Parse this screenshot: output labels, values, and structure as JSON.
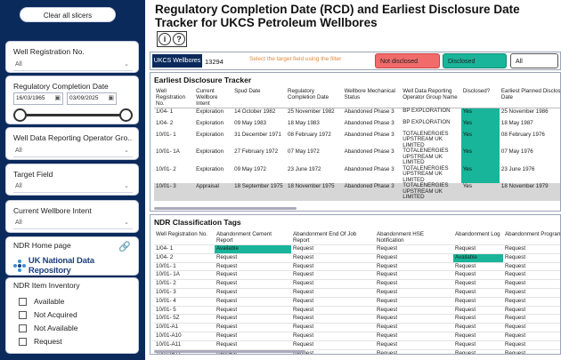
{
  "sidebar": {
    "clear_button": "Clear all slicers",
    "well_registration": {
      "title": "Well Registration No.",
      "value": "All"
    },
    "completion_date": {
      "title": "Regulatory Completion Date",
      "from": "16/03/1965",
      "to": "03/09/2025"
    },
    "operator_group": {
      "title": "Well Data Reporting Operator Gro...",
      "value": "All"
    },
    "target_field": {
      "title": "Target Field",
      "value": "All"
    },
    "wellbore_intent": {
      "title": "Current Wellbore Intent",
      "value": "All"
    },
    "ndr_home": {
      "title": "NDR Home page",
      "logo_text": "UK National Data Repository"
    },
    "ndr_inventory": {
      "title": "NDR Item Inventory",
      "items": [
        "Available",
        "Not Acquired",
        "Not Available",
        "Request"
      ]
    }
  },
  "header": {
    "title": "Regulatory Completion Date (RCD) and Earliest Disclosure Date Tracker for UKCS Petroleum Wellbores",
    "icons": [
      "info-icon",
      "help-icon"
    ]
  },
  "filters": {
    "ukcs_label": "UKCS Wellbores",
    "ukcs_count": "13294",
    "hint": "Select the target field using the filter",
    "not_disclosed": "Not disclosed",
    "disclosed": "Disclosed",
    "all": "All",
    "colors": {
      "not_disclosed": "#f26b6b",
      "disclosed": "#18b59a"
    }
  },
  "tracker": {
    "title": "Earliest Disclosure Tracker",
    "columns": [
      "Well Registration No.",
      "Current Wellbore Intent",
      "Spud Date",
      "Regulatory Completion Date",
      "Wellbore Mechanical Status",
      "Well Data Reporting Operator Group Name",
      "Disclosed?",
      "Earliest Planned Disclosure Date"
    ],
    "rows": [
      [
        "1/04- 1",
        "Exploration",
        "14 October 1982",
        "25 November 1982",
        "Abandoned Phase 3",
        "BP EXPLORATION",
        "Yes",
        "25 November 1986"
      ],
      [
        "1/04- 2",
        "Exploration",
        "09 May 1983",
        "18 May 1983",
        "Abandoned Phase 3",
        "BP EXPLORATION",
        "Yes",
        "18 May 1987"
      ],
      [
        "10/01- 1",
        "Exploration",
        "31 December 1971",
        "08 February 1972",
        "Abandoned Phase 3",
        "TOTALENERGIES UPSTREAM UK LIMITED",
        "Yes",
        "08 February 1976"
      ],
      [
        "10/01- 1A",
        "Exploration",
        "27 February 1972",
        "07 May 1972",
        "Abandoned Phase 3",
        "TOTALENERGIES UPSTREAM UK LIMITED",
        "Yes",
        "07 May 1976"
      ],
      [
        "10/01- 2",
        "Exploration",
        "09 May 1972",
        "23 June 1972",
        "Abandoned Phase 3",
        "TOTALENERGIES UPSTREAM UK LIMITED",
        "Yes",
        "23 June 1976"
      ],
      [
        "10/01- 3",
        "Appraisal",
        "18 September 1975",
        "18 November 1975",
        "Abandoned Phase 3",
        "TOTALENERGIES UPSTREAM UK LIMITED",
        "Yes",
        "18 November 1979"
      ]
    ]
  },
  "tags": {
    "title": "NDR Classification Tags",
    "columns": [
      "Well Registration No.",
      "Abandonment Cement Report",
      "Abandonment End Of Job Report",
      "Abandonment HSE Notification",
      "Abandonment Log",
      "Abandonment Program"
    ],
    "rows": [
      [
        "1/04- 1",
        "Available",
        "Request",
        "Request",
        "Request",
        "Request"
      ],
      [
        "1/04- 2",
        "Request",
        "Request",
        "Request",
        "Available",
        "Request"
      ],
      [
        "10/01- 1",
        "Request",
        "Request",
        "Request",
        "Request",
        "Request"
      ],
      [
        "10/01- 1A",
        "Request",
        "Request",
        "Request",
        "Request",
        "Request"
      ],
      [
        "10/01- 2",
        "Request",
        "Request",
        "Request",
        "Request",
        "Request"
      ],
      [
        "10/01- 3",
        "Request",
        "Request",
        "Request",
        "Request",
        "Request"
      ],
      [
        "10/01- 4",
        "Request",
        "Request",
        "Request",
        "Request",
        "Request"
      ],
      [
        "10/01- 5",
        "Request",
        "Request",
        "Request",
        "Request",
        "Request"
      ],
      [
        "10/01- 5Z",
        "Request",
        "Request",
        "Request",
        "Request",
        "Request"
      ],
      [
        "10/01-A1",
        "Request",
        "Request",
        "Request",
        "Request",
        "Request"
      ],
      [
        "10/01-A10",
        "Request",
        "Request",
        "Request",
        "Request",
        "Request"
      ],
      [
        "10/01-A11",
        "Request",
        "Request",
        "Request",
        "Request",
        "Request"
      ],
      [
        "10/01-A12",
        "Request",
        "Request",
        "Request",
        "Request",
        "Request"
      ],
      [
        "10/01-A13",
        "Request",
        "Request",
        "Request",
        "Request",
        "Request"
      ]
    ],
    "available_color": "#18b59a"
  }
}
